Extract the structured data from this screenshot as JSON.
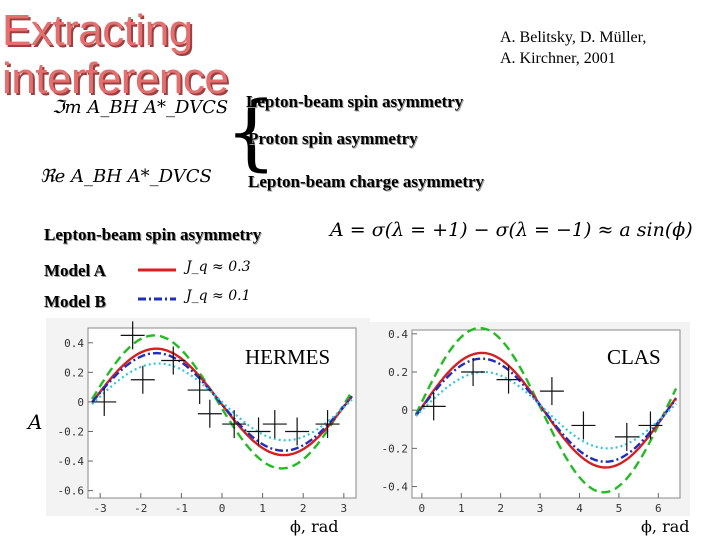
{
  "slide": {
    "title_line1": "Extracting",
    "title_line2": "interference",
    "authors_line1": "A. Belitsky, D. Müller,",
    "authors_line2": "A. Kirchner, 2001",
    "formula_im": "ℑm A_BH A*_DVCS",
    "formula_re": "ℜe A_BH A*_DVCS",
    "brace": "{",
    "item_spin": "Lepton-beam spin asymmetry",
    "item_proton": "Proton spin asymmetry",
    "item_charge": "Lepton-beam charge asymmetry",
    "section_label": "Lepton-beam spin asymmetry",
    "asym_formula": "A = σ(λ = +1) − σ(λ = −1) ≈ a sin(ϕ)",
    "model_a_label": "Model A",
    "model_a_formula": "J_q ≈ 0.3",
    "model_b_label": "Model B",
    "model_b_formula": "J_q ≈ 0.1",
    "y_axis_symbol": "A",
    "colors": {
      "model_a": "#d42020",
      "model_b": "#1f2fb8",
      "green": "#22bb22",
      "cyan": "#33c6d6",
      "title": "#e46f6f"
    }
  },
  "chart_data": [
    {
      "type": "line",
      "id": "hermes",
      "title": "HERMES",
      "xlabel": "ϕ, rad",
      "xlim": [
        -3.3,
        3.3
      ],
      "ylim": [
        -0.65,
        0.5
      ],
      "xticks": [
        -3,
        -2,
        -1,
        0,
        1,
        2,
        3
      ],
      "yticks": [
        0.4,
        0.2,
        0,
        -0.2,
        -0.4,
        -0.6
      ],
      "series": [
        {
          "style": "green-dashed",
          "amplitude": 0.45,
          "phase": 0.1
        },
        {
          "style": "red-solid",
          "amplitude": 0.36,
          "phase": 0.05
        },
        {
          "style": "blue-dashdot",
          "amplitude": 0.33,
          "phase": 0.05
        },
        {
          "style": "cyan-dotted",
          "amplitude": 0.26,
          "phase": 0.0
        }
      ],
      "points": [
        {
          "x": -2.9,
          "y": 0.0
        },
        {
          "x": -2.2,
          "y": 0.45
        },
        {
          "x": -1.95,
          "y": 0.15
        },
        {
          "x": -1.2,
          "y": 0.28
        },
        {
          "x": -0.55,
          "y": 0.08
        },
        {
          "x": -0.3,
          "y": -0.08
        },
        {
          "x": 0.3,
          "y": -0.15
        },
        {
          "x": 0.9,
          "y": -0.2
        },
        {
          "x": 1.3,
          "y": -0.15
        },
        {
          "x": 1.85,
          "y": -0.2
        },
        {
          "x": 2.6,
          "y": -0.15
        }
      ]
    },
    {
      "type": "line",
      "id": "clas",
      "title": "CLAS",
      "xlabel": "ϕ, rad",
      "xlim": [
        -0.25,
        6.55
      ],
      "ylim": [
        -0.46,
        0.42
      ],
      "xticks": [
        0,
        1,
        2,
        3,
        4,
        5,
        6
      ],
      "yticks": [
        0.4,
        0.2,
        0,
        -0.2,
        -0.4
      ],
      "series": [
        {
          "style": "green-dashed",
          "amplitude": 0.43,
          "phase": 0.1
        },
        {
          "style": "red-solid",
          "amplitude": 0.3,
          "phase": 0.05
        },
        {
          "style": "blue-dashdot",
          "amplitude": 0.27,
          "phase": 0.05
        },
        {
          "style": "cyan-dotted",
          "amplitude": 0.2,
          "phase": 0.0
        }
      ],
      "points": [
        {
          "x": 0.3,
          "y": 0.02
        },
        {
          "x": 1.3,
          "y": 0.2
        },
        {
          "x": 2.2,
          "y": 0.16
        },
        {
          "x": 3.3,
          "y": 0.1
        },
        {
          "x": 4.1,
          "y": -0.08
        },
        {
          "x": 5.2,
          "y": -0.14
        },
        {
          "x": 5.8,
          "y": -0.08
        }
      ]
    }
  ]
}
